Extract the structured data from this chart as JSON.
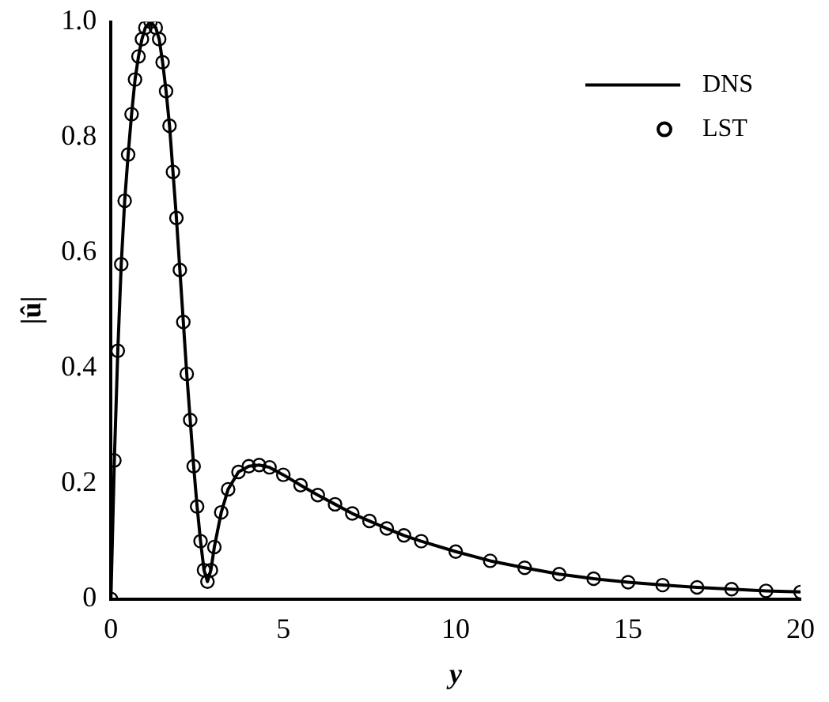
{
  "chart_data": {
    "type": "line",
    "xlabel": "y",
    "ylabel": "|û|",
    "x": [
      0,
      0.1,
      0.2,
      0.3,
      0.4,
      0.5,
      0.6,
      0.7,
      0.8,
      0.9,
      1.0,
      1.15,
      1.3,
      1.4,
      1.5,
      1.6,
      1.7,
      1.8,
      1.9,
      2.0,
      2.1,
      2.2,
      2.3,
      2.4,
      2.5,
      2.6,
      2.7,
      2.8,
      2.9,
      3.0,
      3.2,
      3.4,
      3.7,
      4.0,
      4.3,
      4.6,
      5,
      5.5,
      6,
      6.5,
      7,
      7.5,
      8,
      8.5,
      9,
      10,
      11,
      12,
      13,
      14,
      15,
      16,
      17,
      18,
      19,
      20
    ],
    "series": [
      {
        "name": "DNS",
        "color": "#000000",
        "marker": "none",
        "values": [
          0,
          0.24,
          0.43,
          0.58,
          0.69,
          0.77,
          0.84,
          0.9,
          0.94,
          0.97,
          0.99,
          1.0,
          0.99,
          0.97,
          0.93,
          0.88,
          0.82,
          0.74,
          0.66,
          0.57,
          0.48,
          0.39,
          0.31,
          0.23,
          0.16,
          0.1,
          0.05,
          0.03,
          0.05,
          0.09,
          0.15,
          0.19,
          0.22,
          0.23,
          0.232,
          0.228,
          0.215,
          0.197,
          0.18,
          0.164,
          0.148,
          0.135,
          0.122,
          0.11,
          0.1,
          0.082,
          0.066,
          0.054,
          0.043,
          0.035,
          0.029,
          0.024,
          0.02,
          0.017,
          0.014,
          0.012
        ]
      },
      {
        "name": "LST",
        "type": "scatter",
        "color": "#000000",
        "marker": "circle",
        "values": [
          0,
          0.24,
          0.43,
          0.58,
          0.69,
          0.77,
          0.84,
          0.9,
          0.94,
          0.97,
          0.99,
          1.0,
          0.99,
          0.97,
          0.93,
          0.88,
          0.82,
          0.74,
          0.66,
          0.57,
          0.48,
          0.39,
          0.31,
          0.23,
          0.16,
          0.1,
          0.05,
          0.03,
          0.05,
          0.09,
          0.15,
          0.19,
          0.22,
          0.23,
          0.232,
          0.228,
          0.215,
          0.197,
          0.18,
          0.164,
          0.148,
          0.135,
          0.122,
          0.11,
          0.1,
          0.082,
          0.066,
          0.054,
          0.043,
          0.035,
          0.029,
          0.024,
          0.02,
          0.017,
          0.014,
          0.012
        ]
      }
    ],
    "xlim": [
      0,
      20
    ],
    "xticks": [
      0,
      5,
      10,
      15,
      20
    ],
    "ylim": [
      0,
      1
    ],
    "yticks": [
      {
        "value": 0,
        "label": "0"
      },
      0.2,
      0.4,
      0.6,
      0.8,
      {
        "value": 1,
        "label": "1.0"
      }
    ],
    "grid": false,
    "legend": "top right"
  }
}
